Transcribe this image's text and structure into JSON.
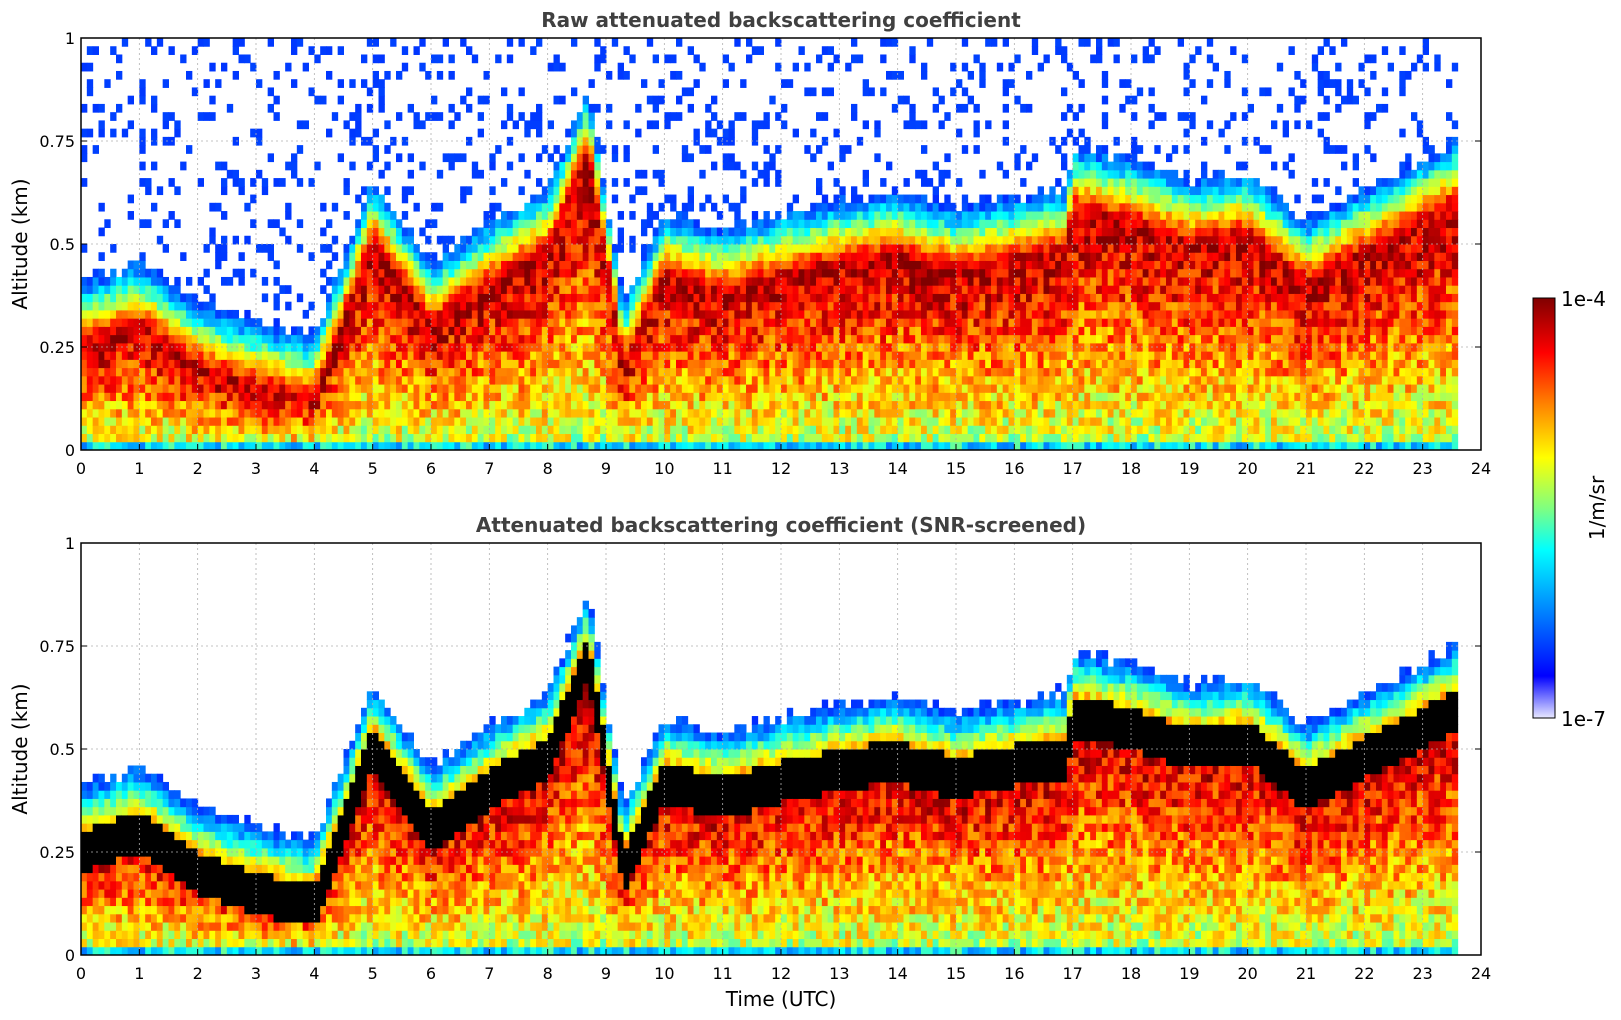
{
  "chart_data": [
    {
      "type": "heatmap",
      "title": "Raw attenuated backscattering coefficient",
      "xlabel": "",
      "ylabel": "Altitude (km)",
      "xlim": [
        0,
        24
      ],
      "ylim": [
        0,
        1
      ],
      "xticks": [
        "0",
        "1",
        "2",
        "3",
        "4",
        "5",
        "6",
        "7",
        "8",
        "9",
        "10",
        "11",
        "12",
        "13",
        "14",
        "15",
        "16",
        "17",
        "18",
        "19",
        "20",
        "21",
        "22",
        "23",
        "24"
      ],
      "yticks": [
        "0",
        "0.25",
        "0.5",
        "0.75",
        "1"
      ],
      "grid": true,
      "data_end_hour": 23.6,
      "layer_center_km": [
        [
          0,
          0.25
        ],
        [
          1,
          0.3
        ],
        [
          2,
          0.2
        ],
        [
          3,
          0.15
        ],
        [
          4,
          0.12
        ],
        [
          5,
          0.5
        ],
        [
          6,
          0.3
        ],
        [
          7,
          0.4
        ],
        [
          8,
          0.48
        ],
        [
          8.7,
          0.72
        ],
        [
          9.3,
          0.2
        ],
        [
          10,
          0.42
        ],
        [
          11,
          0.38
        ],
        [
          12,
          0.42
        ],
        [
          13,
          0.45
        ],
        [
          14,
          0.47
        ],
        [
          15,
          0.43
        ],
        [
          16,
          0.46
        ],
        [
          16.9,
          0.48
        ],
        [
          17,
          0.58
        ],
        [
          18,
          0.55
        ],
        [
          19,
          0.5
        ],
        [
          20,
          0.52
        ],
        [
          21,
          0.4
        ],
        [
          22,
          0.48
        ],
        [
          23,
          0.55
        ],
        [
          23.6,
          0.6
        ]
      ]
    },
    {
      "type": "heatmap",
      "title": "Attenuated backscattering coefficient (SNR-screened)",
      "xlabel": "Time (UTC)",
      "ylabel": "Altitude (km)",
      "xlim": [
        0,
        24
      ],
      "ylim": [
        0,
        1
      ],
      "xticks": [
        "0",
        "1",
        "2",
        "3",
        "4",
        "5",
        "6",
        "7",
        "8",
        "9",
        "10",
        "11",
        "12",
        "13",
        "14",
        "15",
        "16",
        "17",
        "18",
        "19",
        "20",
        "21",
        "22",
        "23",
        "24"
      ],
      "yticks": [
        "0",
        "0.25",
        "0.5",
        "0.75",
        "1"
      ],
      "grid": true,
      "data_end_hour": 23.6,
      "layer_center_km": [
        [
          0,
          0.25
        ],
        [
          1,
          0.3
        ],
        [
          2,
          0.2
        ],
        [
          3,
          0.15
        ],
        [
          4,
          0.12
        ],
        [
          5,
          0.5
        ],
        [
          6,
          0.3
        ],
        [
          7,
          0.4
        ],
        [
          8,
          0.48
        ],
        [
          8.7,
          0.72
        ],
        [
          9.3,
          0.2
        ],
        [
          10,
          0.42
        ],
        [
          11,
          0.38
        ],
        [
          12,
          0.42
        ],
        [
          13,
          0.45
        ],
        [
          14,
          0.47
        ],
        [
          15,
          0.43
        ],
        [
          16,
          0.46
        ],
        [
          16.9,
          0.48
        ],
        [
          17,
          0.58
        ],
        [
          18,
          0.55
        ],
        [
          19,
          0.5
        ],
        [
          20,
          0.52
        ],
        [
          21,
          0.4
        ],
        [
          22,
          0.48
        ],
        [
          23,
          0.55
        ],
        [
          23.6,
          0.6
        ]
      ]
    }
  ],
  "colorbar": {
    "label": "1/m/sr",
    "max_label": "1e-4",
    "min_label": "1e-7",
    "log_min": -7,
    "log_max": -4,
    "colors": [
      "#e8e8ff",
      "#0000ff",
      "#0080ff",
      "#00ffff",
      "#80ff80",
      "#ffff00",
      "#ff8000",
      "#ff0000",
      "#800000"
    ]
  }
}
